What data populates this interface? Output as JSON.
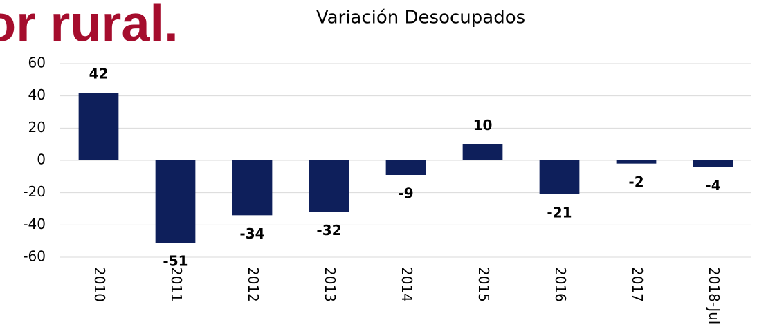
{
  "heading": "or rural.",
  "chart_data": {
    "type": "bar",
    "title": "Variación Desocupados",
    "categories": [
      "2010",
      "2011",
      "2012",
      "2013",
      "2014",
      "2015",
      "2016",
      "2017",
      "2018-Jul"
    ],
    "values": [
      42,
      -51,
      -34,
      -32,
      -9,
      10,
      -21,
      -2,
      -4
    ],
    "color": "#0e1f5b",
    "ylim": [
      -60,
      60
    ],
    "yticks": [
      -60,
      -40,
      -20,
      0,
      20,
      40,
      60
    ],
    "grid": true
  }
}
